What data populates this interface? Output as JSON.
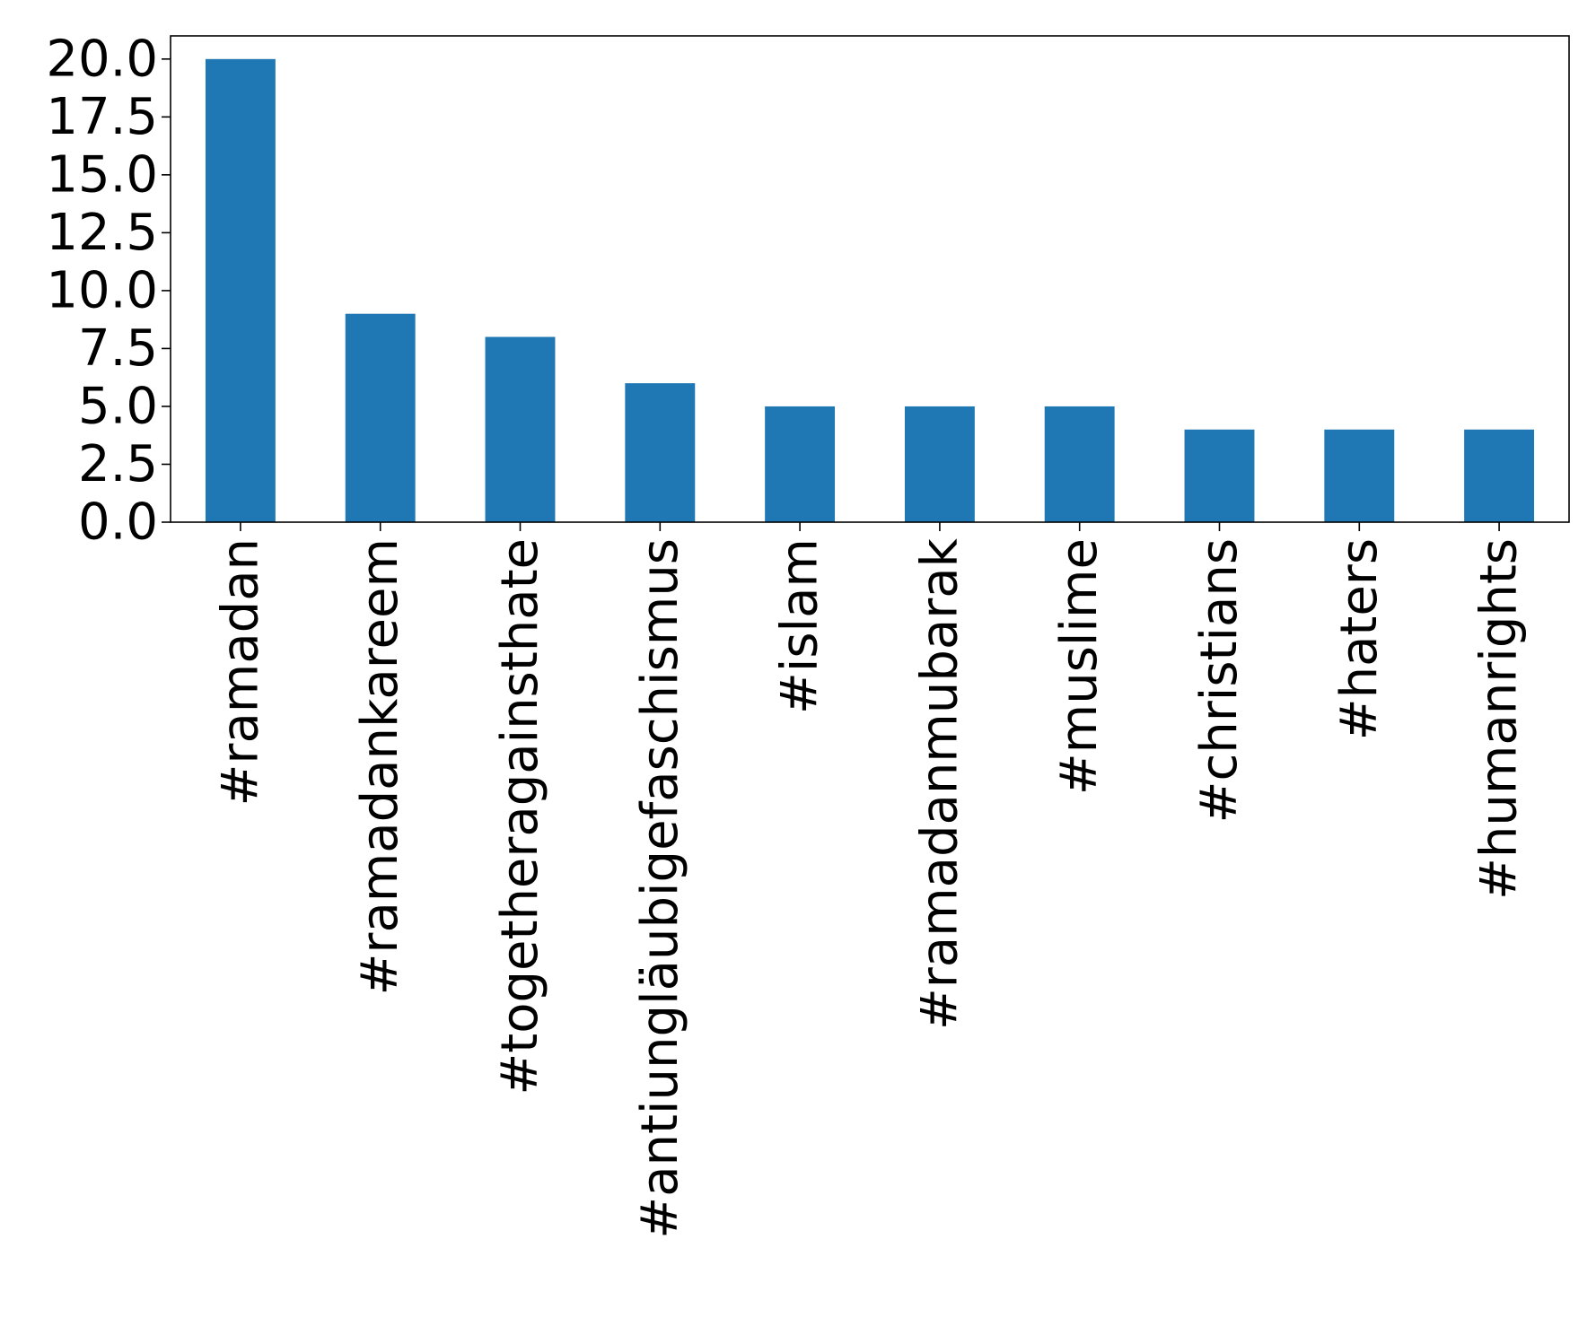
{
  "chart_data": {
    "type": "bar",
    "categories": [
      "#ramadan",
      "#ramadankareem",
      "#togetheragainsthate",
      "#antiungläubigefaschismus",
      "#islam",
      "#ramadanmubarak",
      "#muslime",
      "#christians",
      "#haters",
      "#humanrights"
    ],
    "values": [
      20,
      9,
      8,
      6,
      5,
      5,
      5,
      4,
      4,
      4
    ],
    "title": "",
    "xlabel": "",
    "ylabel": "",
    "ylim": [
      0,
      21
    ],
    "yticks": [
      0.0,
      2.5,
      5.0,
      7.5,
      10.0,
      12.5,
      15.0,
      17.5,
      20.0
    ],
    "ytick_labels": [
      "0.0",
      "2.5",
      "5.0",
      "7.5",
      "10.0",
      "12.5",
      "15.0",
      "17.5",
      "20.0"
    ],
    "bar_color": "#1f77b4",
    "grid": false,
    "legend": "none"
  }
}
